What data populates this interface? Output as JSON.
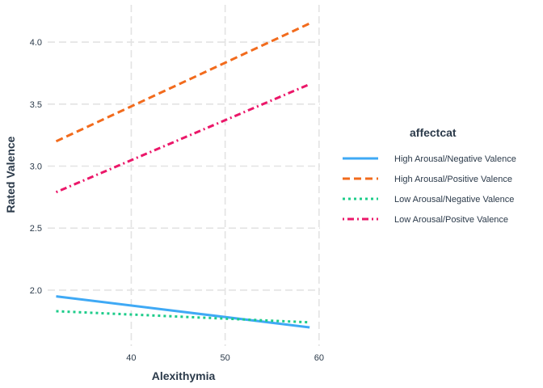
{
  "chart_data": {
    "type": "line",
    "xlabel": "Alexithymia",
    "ylabel": "Rated Valence",
    "xlim": [
      31.1,
      60.1
    ],
    "ylim": [
      1.55,
      4.3
    ],
    "xticks": [
      40,
      50,
      60
    ],
    "yticks": [
      2.0,
      2.5,
      3.0,
      3.5,
      4.0
    ],
    "ytick_labels": [
      "2.0",
      "2.5",
      "3.0",
      "3.5",
      "4.0"
    ],
    "grid": true,
    "legend": {
      "title": "affectcat",
      "placement": "right"
    },
    "series": [
      {
        "name": "High Arousal/Negative Valence",
        "x": [
          32,
          59
        ],
        "y": [
          1.95,
          1.7
        ],
        "color": "#3fa9f5",
        "dash": "solid"
      },
      {
        "name": "High Arousal/Positive Valence",
        "x": [
          32,
          59
        ],
        "y": [
          3.2,
          4.15
        ],
        "color": "#f26b1d",
        "dash": "long-dash"
      },
      {
        "name": "Low Arousal/Negative Valence",
        "x": [
          32,
          59
        ],
        "y": [
          1.83,
          1.74
        ],
        "color": "#1dcc8a",
        "dash": "dotted"
      },
      {
        "name": "Low Arousal/Positve Valence",
        "x": [
          32,
          59
        ],
        "y": [
          2.79,
          3.66
        ],
        "color": "#eb1769",
        "dash": "dot-dash"
      }
    ]
  }
}
